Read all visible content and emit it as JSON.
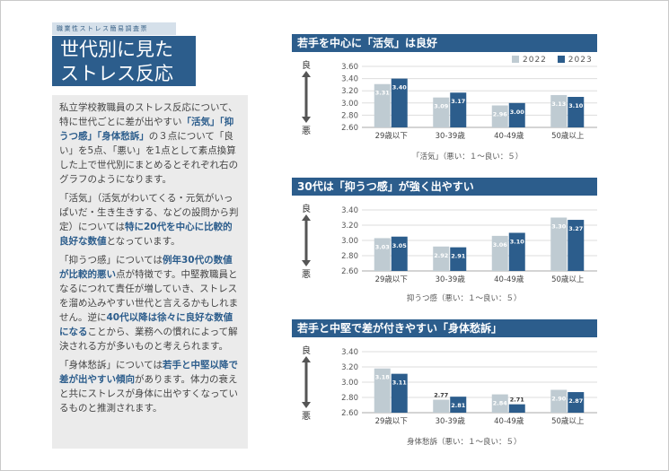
{
  "header": {
    "tag": "職業性ストレス簡易調査票",
    "title_line1": "世代別に見た",
    "title_line2": "ストレス反応"
  },
  "body": {
    "p1_a": "私立学校教職員のストレス反応について、　特に世代ごとに差が出やすい",
    "p1_hl1": "「活気」",
    "p1_hl2": "「抑うつ感」",
    "p1_hl3": "「身体愁訴」",
    "p1_b": "の３点について「良い」を5点、「悪い」を1点として素点換算した上で世代別にまとめるとそれぞれ右のグラフのようになります。",
    "p2_a": "「活気」（活気がわいてくる・元気がいっぱいだ・生き生きする、などの設問から判定）については",
    "p2_hl": "特に20代を中心に比較的良好な数値",
    "p2_b": "となっています。",
    "p3_a": "「抑うつ感」については",
    "p3_hl1": "例年30代の数値が比較的悪い",
    "p3_b": "点が特徴です。中堅教職員となるにつれて責任が増していき、ストレスを溜め込みやすい世代と言えるかもしれません。逆に",
    "p3_hl2": "40代以降は徐々に良好な数値になる",
    "p3_c": "ことから、業務への慣れによって解決される方が多いものと考えられます。",
    "p4_a": "「身体愁訴」については",
    "p4_hl": "若手と中堅以降で差が出やすい傾向",
    "p4_b": "があります。体力の衰えと共にストレスが身体に出やすくなっているものと推測されます。"
  },
  "legend": {
    "s1": "2022",
    "s2": "2023"
  },
  "colors": {
    "s1": "#bfcbd2",
    "s2": "#2c5d8c",
    "accent": "#2c5d8c"
  },
  "chart_data": [
    {
      "type": "bar",
      "title": "若手を中心に「活気」は良好",
      "categories": [
        "29歳以下",
        "30-39歳",
        "40-49歳",
        "50歳以上"
      ],
      "series": [
        {
          "name": "2022",
          "values": [
            3.31,
            3.09,
            2.96,
            3.13
          ]
        },
        {
          "name": "2023",
          "values": [
            3.4,
            3.17,
            3.0,
            3.1
          ]
        }
      ],
      "ylim": [
        2.6,
        3.6
      ],
      "yticks": [
        "3.60",
        "3.40",
        "3.20",
        "3.00",
        "2.80",
        "2.60"
      ],
      "ylabel_top": "良",
      "ylabel_bottom": "悪",
      "xlabel": "「活気」（悪い：１～良い：５）"
    },
    {
      "type": "bar",
      "title": "30代は「抑うつ感」が強く出やすい",
      "categories": [
        "29歳以下",
        "30-39歳",
        "40-49歳",
        "50歳以上"
      ],
      "series": [
        {
          "name": "2022",
          "values": [
            3.03,
            2.92,
            3.06,
            3.3
          ]
        },
        {
          "name": "2023",
          "values": [
            3.05,
            2.91,
            3.1,
            3.27
          ]
        }
      ],
      "ylim": [
        2.6,
        3.4
      ],
      "yticks": [
        "3.40",
        "3.20",
        "3.00",
        "2.80",
        "2.60"
      ],
      "ylabel_top": "良",
      "ylabel_bottom": "悪",
      "xlabel": "抑うつ感（悪い：１～良い：５）"
    },
    {
      "type": "bar",
      "title": "若手と中堅で差が付きやすい「身体愁訴」",
      "categories": [
        "29歳以下",
        "30-39歳",
        "40-49歳",
        "50歳以上"
      ],
      "series": [
        {
          "name": "2022",
          "values": [
            3.18,
            2.77,
            2.84,
            2.9
          ]
        },
        {
          "name": "2023",
          "values": [
            3.11,
            2.81,
            2.71,
            2.87
          ]
        }
      ],
      "ylim": [
        2.6,
        3.4
      ],
      "yticks": [
        "3.40",
        "3.20",
        "3.00",
        "2.80",
        "2.60"
      ],
      "ylabel_top": "良",
      "ylabel_bottom": "悪",
      "xlabel": "身体愁訴（悪い：１～良い：５）"
    }
  ]
}
